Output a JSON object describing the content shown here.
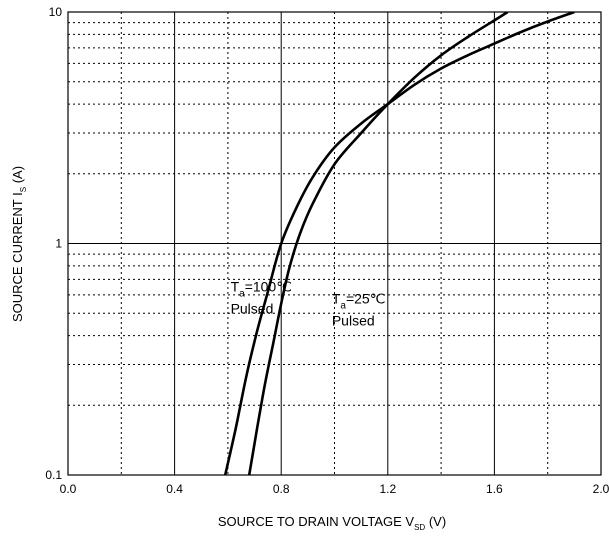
{
  "chart_data": {
    "type": "line",
    "xlabel": "SOURCE TO DRAIN VOLTAGE",
    "xlabel_symbol": "V",
    "xlabel_subscript": "SD",
    "xlabel_unit": "(V)",
    "ylabel": "SOURCE CURRENT",
    "ylabel_symbol": "I",
    "ylabel_subscript": "S",
    "ylabel_unit": "(A)",
    "xlim": [
      0.0,
      2.0
    ],
    "ylim": [
      0.1,
      10
    ],
    "yscale": "log",
    "x_ticks": [
      0.0,
      0.4,
      0.8,
      1.2,
      1.6,
      2.0
    ],
    "x_tick_labels": [
      "0.0",
      "0.4",
      "0.8",
      "1.2",
      "1.6",
      "2.0"
    ],
    "y_ticks": [
      0.1,
      1,
      10
    ],
    "y_tick_labels": [
      "0.1",
      "1",
      "10"
    ],
    "grid": true,
    "series": [
      {
        "name": "Ta=100℃ Pulsed",
        "x": [
          0.59,
          0.63,
          0.67,
          0.71,
          0.75,
          0.8,
          0.86,
          0.92,
          1.0,
          1.1,
          1.2,
          1.3,
          1.4,
          1.5,
          1.6,
          1.7,
          1.8,
          1.9
        ],
        "y": [
          0.1,
          0.16,
          0.27,
          0.42,
          0.62,
          1.0,
          1.45,
          1.95,
          2.6,
          3.3,
          4.0,
          4.85,
          5.7,
          6.5,
          7.3,
          8.2,
          9.1,
          10.0
        ]
      },
      {
        "name": "Ta=25℃ Pulsed",
        "x": [
          0.68,
          0.71,
          0.74,
          0.77,
          0.8,
          0.83,
          0.87,
          0.92,
          1.0,
          1.1,
          1.2,
          1.3,
          1.4,
          1.5,
          1.6,
          1.65
        ],
        "y": [
          0.1,
          0.16,
          0.25,
          0.37,
          0.55,
          0.78,
          1.1,
          1.5,
          2.2,
          3.0,
          4.0,
          5.2,
          6.5,
          7.8,
          9.2,
          10.0
        ]
      }
    ],
    "annotations": [
      {
        "symbol": "T",
        "sub": "a",
        "text": "=100℃",
        "line2": "Pulsed",
        "x": 0.61,
        "y": 0.62
      },
      {
        "symbol": "T",
        "sub": "a",
        "text": "=25℃",
        "line2": "Pulsed",
        "x": 0.99,
        "y": 0.55
      }
    ]
  }
}
